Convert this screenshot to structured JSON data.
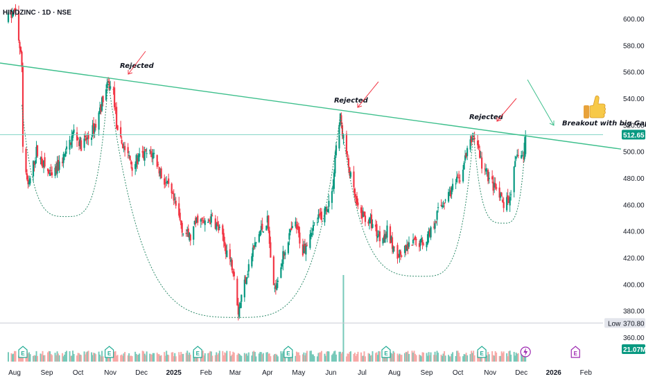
{
  "header": {
    "symbol": "HINDZINC · 1D · NSE"
  },
  "colors": {
    "up": "#089981",
    "down": "#f23645",
    "up_vol": "#76c9b9",
    "down_vol": "#f7a9a7",
    "trendline": "#3dbf8c",
    "cup": "#2e8b6a",
    "arrow": "#f23645",
    "arrow_green": "#3dbf8c",
    "price_badge": "#089981",
    "low_badge": "#e3e5ec",
    "earnings": "#22ab94",
    "dividend": "#9c27b0"
  },
  "axis": {
    "y_ticks": [
      "360.00",
      "380.00",
      "400.00",
      "420.00",
      "440.00",
      "460.00",
      "480.00",
      "500.00",
      "520.00",
      "540.00",
      "560.00",
      "580.00",
      "600.00"
    ],
    "x_ticks": [
      "Aug",
      "Sep",
      "Oct",
      "Nov",
      "Dec",
      "2025",
      "Feb",
      "Mar",
      "Apr",
      "May",
      "Jun",
      "Jul",
      "Aug",
      "Sep",
      "Oct",
      "Nov",
      "Dec",
      "2026",
      "Feb"
    ],
    "x_bold": [
      "2025",
      "2026"
    ]
  },
  "badges": {
    "last_price": "512.65",
    "low_label": "Low",
    "low_value": "370.80",
    "volume": "21.07M"
  },
  "annotations": {
    "rejected_1": "Rejected",
    "rejected_2": "Rejected",
    "rejected_3": "Rejected",
    "breakout": "Breakout with big Gap",
    "thumb_icon": "thumbs-up-icon"
  },
  "events": {
    "earnings_label": "E",
    "dividend_label": "E"
  },
  "chart_data": {
    "type": "candlestick",
    "title": "HINDZINC · 1D · NSE",
    "ylim": [
      350,
      610
    ],
    "keyframes": [
      [
        "2024-07-26",
        600
      ],
      [
        "2024-08-02",
        605
      ],
      [
        "2024-08-08",
        565
      ],
      [
        "2024-08-09",
        505
      ],
      [
        "2024-08-14",
        472
      ],
      [
        "2024-08-22",
        500
      ],
      [
        "2024-08-30",
        488
      ],
      [
        "2024-09-06",
        480
      ],
      [
        "2024-09-13",
        490
      ],
      [
        "2024-09-20",
        500
      ],
      [
        "2024-09-27",
        515
      ],
      [
        "2024-10-04",
        505
      ],
      [
        "2024-10-11",
        510
      ],
      [
        "2024-10-18",
        520
      ],
      [
        "2024-10-25",
        540
      ],
      [
        "2024-10-30",
        550
      ],
      [
        "2024-11-04",
        545
      ],
      [
        "2024-11-08",
        512
      ],
      [
        "2024-11-15",
        502
      ],
      [
        "2024-11-22",
        490
      ],
      [
        "2024-11-29",
        495
      ],
      [
        "2024-12-06",
        498
      ],
      [
        "2024-12-13",
        498
      ],
      [
        "2024-12-20",
        482
      ],
      [
        "2024-12-27",
        472
      ],
      [
        "2025-01-03",
        458
      ],
      [
        "2025-01-10",
        440
      ],
      [
        "2025-01-17",
        435
      ],
      [
        "2025-01-24",
        450
      ],
      [
        "2025-01-31",
        445
      ],
      [
        "2025-02-07",
        450
      ],
      [
        "2025-02-14",
        440
      ],
      [
        "2025-02-21",
        425
      ],
      [
        "2025-02-28",
        410
      ],
      [
        "2025-03-04",
        380
      ],
      [
        "2025-03-11",
        405
      ],
      [
        "2025-03-18",
        425
      ],
      [
        "2025-03-25",
        440
      ],
      [
        "2025-04-01",
        448
      ],
      [
        "2025-04-07",
        395
      ],
      [
        "2025-04-14",
        415
      ],
      [
        "2025-04-21",
        435
      ],
      [
        "2025-04-28",
        445
      ],
      [
        "2025-05-05",
        425
      ],
      [
        "2025-05-12",
        440
      ],
      [
        "2025-05-19",
        448
      ],
      [
        "2025-05-26",
        455
      ],
      [
        "2025-06-02",
        468
      ],
      [
        "2025-06-06",
        505
      ],
      [
        "2025-06-10",
        525
      ],
      [
        "2025-06-13",
        510
      ],
      [
        "2025-06-16",
        498
      ],
      [
        "2025-06-20",
        480
      ],
      [
        "2025-06-27",
        455
      ],
      [
        "2025-07-04",
        450
      ],
      [
        "2025-07-11",
        445
      ],
      [
        "2025-07-18",
        435
      ],
      [
        "2025-07-25",
        440
      ],
      [
        "2025-08-01",
        425
      ],
      [
        "2025-08-08",
        422
      ],
      [
        "2025-08-15",
        428
      ],
      [
        "2025-08-22",
        432
      ],
      [
        "2025-08-29",
        432
      ],
      [
        "2025-09-05",
        440
      ],
      [
        "2025-09-12",
        455
      ],
      [
        "2025-09-19",
        465
      ],
      [
        "2025-09-26",
        472
      ],
      [
        "2025-10-03",
        480
      ],
      [
        "2025-10-10",
        500
      ],
      [
        "2025-10-16",
        512
      ],
      [
        "2025-10-20",
        505
      ],
      [
        "2025-10-24",
        490
      ],
      [
        "2025-10-31",
        480
      ],
      [
        "2025-11-07",
        470
      ],
      [
        "2025-11-14",
        460
      ],
      [
        "2025-11-19",
        462
      ],
      [
        "2025-11-24",
        485
      ],
      [
        "2025-11-28",
        500
      ],
      [
        "2025-12-03",
        495
      ],
      [
        "2025-12-05",
        512.65
      ]
    ],
    "trendline": [
      [
        "2024-07-26",
        567
      ],
      [
        "2026-02-15",
        504
      ]
    ],
    "cups": [
      {
        "from": [
          "2024-08-08",
          535
        ],
        "bottom": [
          "2024-09-20",
          451
        ],
        "to": [
          "2024-10-30",
          553
        ]
      },
      {
        "from": [
          "2024-10-30",
          553
        ],
        "bottom": [
          "2025-03-04",
          375
        ],
        "to": [
          "2025-06-10",
          528
        ]
      },
      {
        "from": [
          "2025-06-10",
          528
        ],
        "bottom": [
          "2025-08-29",
          406
        ],
        "to": [
          "2025-10-16",
          514
        ]
      },
      {
        "from": [
          "2025-10-16",
          514
        ],
        "bottom": [
          "2025-11-14",
          446
        ],
        "to": [
          "2025-12-05",
          510
        ]
      }
    ],
    "last_close": 512.65,
    "low": 370.8,
    "volume_last": "21.07M",
    "earnings_dates": [
      "2024-08-09",
      "2024-10-31",
      "2025-01-24",
      "2025-04-21",
      "2025-07-24",
      "2025-10-24"
    ],
    "dividend_dates": [
      "2025-12-05"
    ],
    "future_earnings": [
      "2026-01-22"
    ]
  }
}
